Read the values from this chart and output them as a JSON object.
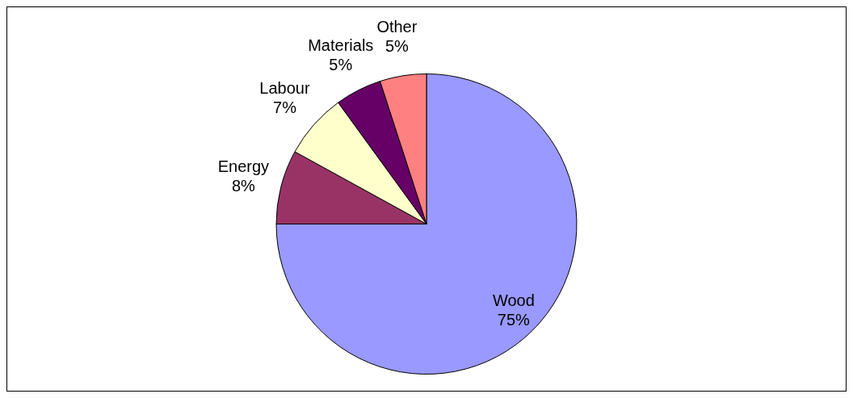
{
  "chart_data": {
    "type": "pie",
    "categories": [
      "Wood",
      "Energy",
      "Labour",
      "Materials",
      "Other"
    ],
    "values": [
      75,
      8,
      7,
      5,
      5
    ],
    "colors": [
      "#9999ff",
      "#993366",
      "#ffffcc",
      "#660066",
      "#ff8080"
    ],
    "value_labels": [
      "75%",
      "8%",
      "7%",
      "5%",
      "5%"
    ],
    "legend": false
  }
}
